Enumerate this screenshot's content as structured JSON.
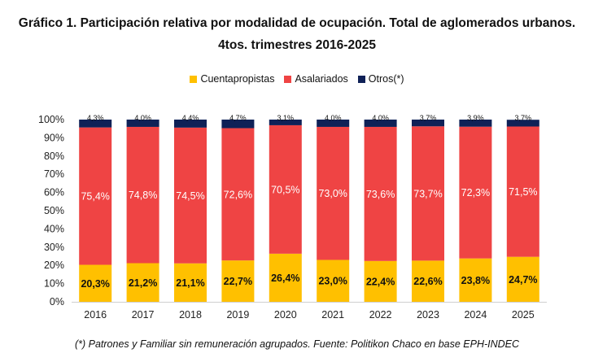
{
  "title_line1": "Gráfico 1. Participación relativa por modalidad de ocupación. Total de aglomerados urbanos.",
  "title_line2": "4tos. trimestres 2016-2025",
  "footnote": "(*) Patrones y Familiar sin remuneración agrupados. Fuente: Politikon Chaco en base EPH-INDEC",
  "colors": {
    "cuentapropistas": "#FFC000",
    "asalariados": "#EF4444",
    "otros": "#0F2157"
  },
  "chart_data": {
    "type": "bar",
    "stacked": true,
    "title": "Gráfico 1. Participación relativa por modalidad de ocupación. Total de aglomerados urbanos. 4tos. trimestres 2016-2025",
    "categories": [
      "2016",
      "2017",
      "2018",
      "2019",
      "2020",
      "2021",
      "2022",
      "2023",
      "2024",
      "2025"
    ],
    "series": [
      {
        "name": "Cuentapropistas",
        "values": [
          20.3,
          21.2,
          21.1,
          22.7,
          26.4,
          23.0,
          22.4,
          22.6,
          23.8,
          24.7
        ],
        "labels": [
          "20,3%",
          "21,2%",
          "21,1%",
          "22,7%",
          "26,4%",
          "23,0%",
          "22,4%",
          "22,6%",
          "23,8%",
          "24,7%"
        ]
      },
      {
        "name": "Asalariados",
        "values": [
          75.4,
          74.8,
          74.5,
          72.6,
          70.5,
          73.0,
          73.6,
          73.7,
          72.3,
          71.5
        ],
        "labels": [
          "75,4%",
          "74,8%",
          "74,5%",
          "72,6%",
          "70,5%",
          "73,0%",
          "73,6%",
          "73,7%",
          "72,3%",
          "71,5%"
        ]
      },
      {
        "name": "Otros(*)",
        "values": [
          4.3,
          4.0,
          4.4,
          4.7,
          3.1,
          4.0,
          4.0,
          3.7,
          3.9,
          3.7
        ],
        "labels": [
          "4,3%",
          "4,0%",
          "4,4%",
          "4,7%",
          "3,1%",
          "4,0%",
          "4,0%",
          "3,7%",
          "3,9%",
          "3,7%"
        ]
      }
    ],
    "yticks": [
      "0%",
      "10%",
      "20%",
      "30%",
      "40%",
      "50%",
      "60%",
      "70%",
      "80%",
      "90%",
      "100%"
    ],
    "ylim": [
      0,
      100
    ],
    "legend_position": "top",
    "grid": false
  }
}
